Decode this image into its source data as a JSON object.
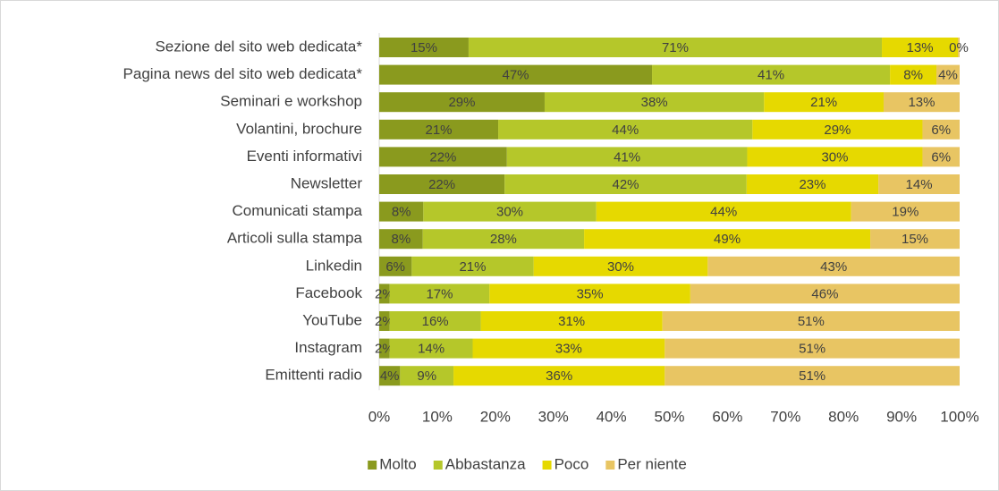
{
  "chart_data": {
    "type": "stacked-bar-horizontal",
    "categories": [
      "Sezione del sito web dedicata*",
      "Pagina news del sito web dedicata*",
      "Seminari e workshop",
      "Volantini, brochure",
      "Eventi informativi",
      "Newsletter",
      "Comunicati stampa",
      "Articoli sulla stampa",
      "Linkedin",
      "Facebook",
      "YouTube",
      "Instagram",
      "Emittenti radio"
    ],
    "series": [
      {
        "name": "Molto",
        "color": "#8a9a1e",
        "values": [
          15.4,
          47,
          28.5,
          20.5,
          22.0,
          21.6,
          7.6,
          7.5,
          5.6,
          1.8,
          1.8,
          1.8,
          3.6
        ],
        "value_labels": [
          "15%",
          "47%",
          "29%",
          "21%",
          "22%",
          "22%",
          "8%",
          "8%",
          "6%",
          "2%",
          "2%",
          "2%",
          "4%"
        ]
      },
      {
        "name": "Abbastanza",
        "color": "#b5c72a",
        "values": [
          71.2,
          41,
          37.8,
          43.8,
          41.4,
          41.7,
          29.8,
          27.8,
          21.0,
          17.2,
          15.7,
          14.3,
          9.2
        ],
        "value_labels": [
          "71%",
          "41%",
          "38%",
          "44%",
          "41%",
          "42%",
          "30%",
          "28%",
          "21%",
          "17%",
          "16%",
          "14%",
          "9%"
        ]
      },
      {
        "name": "Poco",
        "color": "#e6d900",
        "values": [
          13.1,
          8,
          20.6,
          29.3,
          30.2,
          22.7,
          43.9,
          49.3,
          30.0,
          34.6,
          31.3,
          33.1,
          36.4
        ],
        "value_labels": [
          "13%",
          "8%",
          "21%",
          "29%",
          "30%",
          "23%",
          "44%",
          "49%",
          "30%",
          "35%",
          "31%",
          "33%",
          "36%"
        ]
      },
      {
        "name": "Per niente",
        "color": "#e8c563",
        "values": [
          0.3,
          4,
          13.1,
          6.4,
          6.4,
          14.0,
          18.7,
          15.4,
          43.4,
          46.4,
          51.2,
          50.8,
          50.8
        ],
        "value_labels": [
          "0%",
          "4%",
          "13%",
          "6%",
          "6%",
          "14%",
          "19%",
          "15%",
          "43%",
          "46%",
          "51%",
          "51%",
          "51%"
        ]
      }
    ],
    "xlim": [
      0,
      100
    ],
    "xticks": [
      {
        "value": 0,
        "label": "0%"
      },
      {
        "value": 10,
        "label": "10%"
      },
      {
        "value": 20,
        "label": "20%"
      },
      {
        "value": 30,
        "label": "30%"
      },
      {
        "value": 40,
        "label": "40%"
      },
      {
        "value": 50,
        "label": "50%"
      },
      {
        "value": 60,
        "label": "60%"
      },
      {
        "value": 70,
        "label": "70%"
      },
      {
        "value": 80,
        "label": "80%"
      },
      {
        "value": 90,
        "label": "90%"
      },
      {
        "value": 100,
        "label": "100%"
      }
    ],
    "legend": "bottom"
  }
}
